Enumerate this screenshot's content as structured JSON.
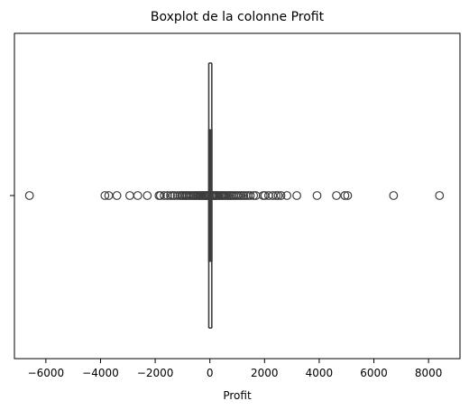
{
  "chart_data": {
    "type": "boxplot",
    "title": "Boxplot de la colonne Profit",
    "xlabel": "Profit",
    "ylabel": "",
    "xlim": [
      -7150,
      9150
    ],
    "xticks": [
      -6000,
      -4000,
      -2000,
      0,
      2000,
      4000,
      6000,
      8000
    ],
    "xtick_labels": [
      "−6000",
      "−4000",
      "−2000",
      "0",
      "2000",
      "4000",
      "6000",
      "8000"
    ],
    "grid": false,
    "legend": "none",
    "box": {
      "q1": 1.7,
      "median": 8.7,
      "q3": 29.4,
      "whisker_low": -39.7,
      "whisker_high": 70.8
    },
    "outliers": [
      -6600,
      -3840,
      -3700,
      -3400,
      -2930,
      -2640,
      -2290,
      -1860,
      -1810,
      -1670,
      -1550,
      -1440,
      -1360,
      -1290,
      -1190,
      -1100,
      -1030,
      -980,
      -920,
      -870,
      -820,
      -760,
      -700,
      -640,
      -590,
      -540,
      -490,
      -440,
      -390,
      -350,
      -310,
      -270,
      -230,
      -190,
      -150,
      -120,
      -90,
      -60,
      90,
      120,
      150,
      190,
      230,
      270,
      320,
      370,
      420,
      470,
      520,
      580,
      640,
      700,
      760,
      820,
      880,
      950,
      1020,
      1090,
      1160,
      1240,
      1320,
      1400,
      1480,
      1600,
      1680,
      1950,
      2010,
      2150,
      2300,
      2420,
      2500,
      2600,
      2820,
      3180,
      3920,
      4630,
      4940,
      5040,
      6720,
      8400
    ],
    "colors": {
      "box_edge": "#3d3d3d",
      "marker_edge": "#3d3d3d",
      "axis": "#000000",
      "text": "#000000",
      "background": "#ffffff"
    }
  }
}
